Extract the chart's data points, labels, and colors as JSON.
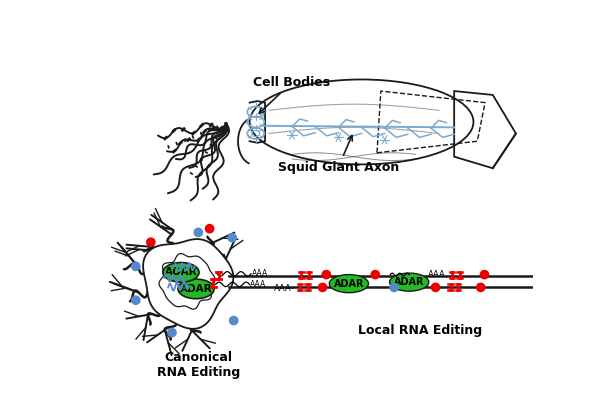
{
  "background_color": "#ffffff",
  "squid_label": "Squid Giant Axon",
  "cell_bodies_label": "Cell Bodies",
  "canonical_label": "Canonical\nRNA Editing",
  "local_label": "Local RNA Editing",
  "adar_label": "ADAR",
  "blue_color": "#5588CC",
  "red_color": "#EE0000",
  "green_color": "#22BB22",
  "outline_color": "#1a1a1a",
  "axon_blue": "#7AAAD0",
  "fig_width": 6.0,
  "fig_height": 4.05,
  "dpi": 100
}
